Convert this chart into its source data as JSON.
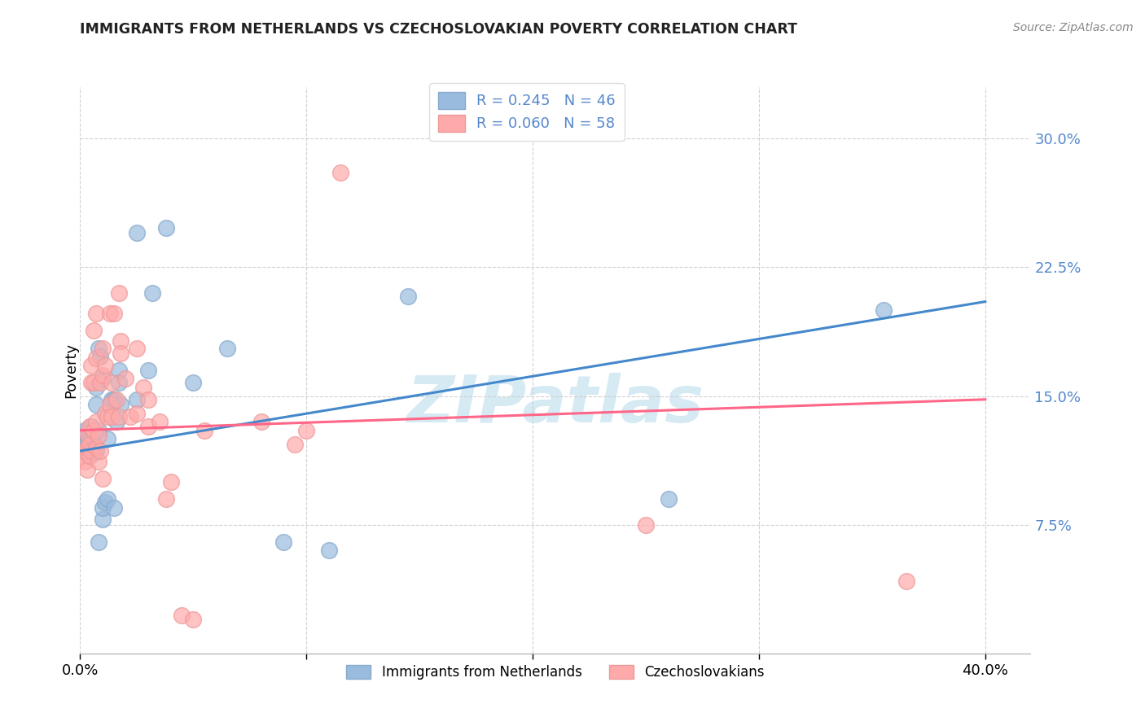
{
  "title": "IMMIGRANTS FROM NETHERLANDS VS CZECHOSLOVAKIAN POVERTY CORRELATION CHART",
  "source": "Source: ZipAtlas.com",
  "ylabel": "Poverty",
  "ytick_vals": [
    0.075,
    0.15,
    0.225,
    0.3
  ],
  "ytick_labels": [
    "7.5%",
    "15.0%",
    "22.5%",
    "30.0%"
  ],
  "xtick_vals": [
    0.0,
    0.1,
    0.2,
    0.3,
    0.4
  ],
  "xtick_labels": [
    "0.0%",
    "",
    "",
    "",
    "40.0%"
  ],
  "xlim": [
    0.0,
    0.42
  ],
  "ylim": [
    0.0,
    0.33
  ],
  "legend_r1": "R = 0.245",
  "legend_n1": "N = 46",
  "legend_r2": "R = 0.060",
  "legend_n2": "N = 58",
  "legend_label1": "Immigrants from Netherlands",
  "legend_label2": "Czechoslovakians",
  "blue_scatter_face": "#99BBDD",
  "blue_scatter_edge": "#88AACC",
  "pink_scatter_face": "#FFAAAA",
  "pink_scatter_edge": "#EE9999",
  "blue_line_color": "#4488CC",
  "pink_line_color": "#FF6688",
  "tick_color": "#5588CC",
  "watermark_color": "#BBDDEE",
  "blue_points": [
    [
      0.001,
      0.118
    ],
    [
      0.002,
      0.122
    ],
    [
      0.001,
      0.127
    ],
    [
      0.002,
      0.13
    ],
    [
      0.003,
      0.118
    ],
    [
      0.003,
      0.123
    ],
    [
      0.004,
      0.128
    ],
    [
      0.004,
      0.115
    ],
    [
      0.005,
      0.12
    ],
    [
      0.005,
      0.125
    ],
    [
      0.005,
      0.132
    ],
    [
      0.006,
      0.117
    ],
    [
      0.006,
      0.122
    ],
    [
      0.007,
      0.118
    ],
    [
      0.007,
      0.145
    ],
    [
      0.007,
      0.155
    ],
    [
      0.008,
      0.178
    ],
    [
      0.008,
      0.065
    ],
    [
      0.008,
      0.13
    ],
    [
      0.009,
      0.173
    ],
    [
      0.01,
      0.16
    ],
    [
      0.01,
      0.078
    ],
    [
      0.01,
      0.085
    ],
    [
      0.011,
      0.088
    ],
    [
      0.012,
      0.09
    ],
    [
      0.012,
      0.125
    ],
    [
      0.014,
      0.14
    ],
    [
      0.014,
      0.148
    ],
    [
      0.015,
      0.148
    ],
    [
      0.015,
      0.085
    ],
    [
      0.016,
      0.135
    ],
    [
      0.017,
      0.158
    ],
    [
      0.017,
      0.165
    ],
    [
      0.018,
      0.145
    ],
    [
      0.025,
      0.148
    ],
    [
      0.025,
      0.245
    ],
    [
      0.03,
      0.165
    ],
    [
      0.032,
      0.21
    ],
    [
      0.038,
      0.248
    ],
    [
      0.05,
      0.158
    ],
    [
      0.065,
      0.178
    ],
    [
      0.09,
      0.065
    ],
    [
      0.11,
      0.06
    ],
    [
      0.145,
      0.208
    ],
    [
      0.26,
      0.09
    ],
    [
      0.355,
      0.2
    ]
  ],
  "pink_points": [
    [
      0.001,
      0.115
    ],
    [
      0.002,
      0.112
    ],
    [
      0.002,
      0.118
    ],
    [
      0.003,
      0.107
    ],
    [
      0.003,
      0.12
    ],
    [
      0.003,
      0.128
    ],
    [
      0.004,
      0.115
    ],
    [
      0.004,
      0.122
    ],
    [
      0.004,
      0.132
    ],
    [
      0.005,
      0.118
    ],
    [
      0.005,
      0.158
    ],
    [
      0.005,
      0.168
    ],
    [
      0.006,
      0.13
    ],
    [
      0.006,
      0.158
    ],
    [
      0.006,
      0.188
    ],
    [
      0.007,
      0.12
    ],
    [
      0.007,
      0.135
    ],
    [
      0.007,
      0.172
    ],
    [
      0.007,
      0.198
    ],
    [
      0.008,
      0.112
    ],
    [
      0.008,
      0.127
    ],
    [
      0.009,
      0.118
    ],
    [
      0.009,
      0.158
    ],
    [
      0.01,
      0.102
    ],
    [
      0.01,
      0.162
    ],
    [
      0.01,
      0.178
    ],
    [
      0.011,
      0.14
    ],
    [
      0.011,
      0.168
    ],
    [
      0.012,
      0.138
    ],
    [
      0.013,
      0.145
    ],
    [
      0.013,
      0.198
    ],
    [
      0.014,
      0.138
    ],
    [
      0.014,
      0.158
    ],
    [
      0.015,
      0.198
    ],
    [
      0.016,
      0.148
    ],
    [
      0.017,
      0.138
    ],
    [
      0.017,
      0.21
    ],
    [
      0.018,
      0.182
    ],
    [
      0.018,
      0.175
    ],
    [
      0.02,
      0.16
    ],
    [
      0.022,
      0.138
    ],
    [
      0.025,
      0.14
    ],
    [
      0.025,
      0.178
    ],
    [
      0.028,
      0.155
    ],
    [
      0.03,
      0.132
    ],
    [
      0.03,
      0.148
    ],
    [
      0.035,
      0.135
    ],
    [
      0.038,
      0.09
    ],
    [
      0.04,
      0.1
    ],
    [
      0.045,
      0.022
    ],
    [
      0.05,
      0.02
    ],
    [
      0.055,
      0.13
    ],
    [
      0.08,
      0.135
    ],
    [
      0.095,
      0.122
    ],
    [
      0.1,
      0.13
    ],
    [
      0.115,
      0.28
    ],
    [
      0.25,
      0.075
    ],
    [
      0.365,
      0.042
    ]
  ],
  "blue_line": {
    "x0": 0.0,
    "y0": 0.118,
    "x1": 0.4,
    "y1": 0.205
  },
  "pink_line": {
    "x0": 0.0,
    "y0": 0.13,
    "x1": 0.4,
    "y1": 0.148
  }
}
